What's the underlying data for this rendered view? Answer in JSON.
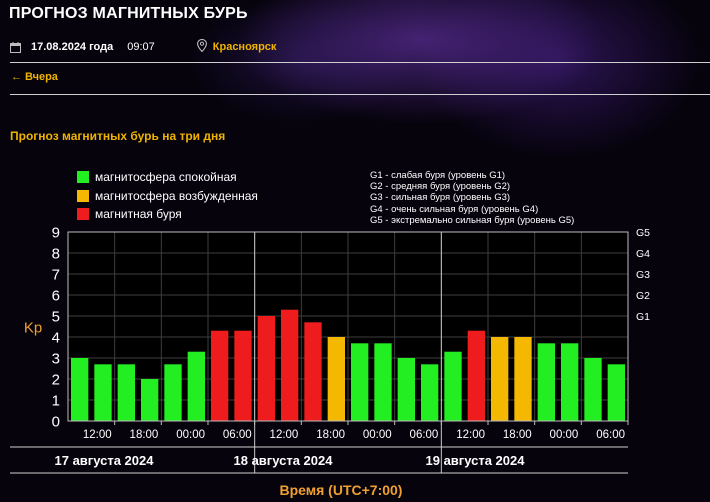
{
  "header": {
    "title": "ПРОГНОЗ МАГНИТНЫХ БУРЬ",
    "date": "17.08.2024 года",
    "time": "09:07",
    "city": "Красноярск",
    "back_link": "← Вчера"
  },
  "chart_data": {
    "type": "bar",
    "title": "Прогноз магнитных бурь на три дня",
    "ylabel": "Kp",
    "xlabel": "Время (UTC+7:00)",
    "ylim": [
      0,
      9
    ],
    "y_ticks": [
      "0",
      "1",
      "2",
      "3",
      "4",
      "5",
      "6",
      "7",
      "8",
      "9"
    ],
    "right_ticks": [
      {
        "kp": 5,
        "label": "G1"
      },
      {
        "kp": 6,
        "label": "G2"
      },
      {
        "kp": 7,
        "label": "G3"
      },
      {
        "kp": 8,
        "label": "G4"
      },
      {
        "kp": 9,
        "label": "G5"
      }
    ],
    "time_labels": [
      "12:00",
      "18:00",
      "00:00",
      "06:00",
      "12:00",
      "18:00",
      "00:00",
      "06:00",
      "12:00",
      "18:00",
      "00:00",
      "06:00"
    ],
    "days": [
      "17 августа 2024",
      "18 августа 2024",
      "19 августа 2024"
    ],
    "values": [
      3.0,
      2.7,
      2.7,
      2.0,
      2.7,
      3.3,
      4.3,
      4.3,
      5.0,
      5.3,
      4.7,
      4.0,
      3.7,
      3.7,
      3.0,
      2.7,
      3.3,
      4.3,
      4.0,
      4.0,
      3.7,
      3.7,
      3.0,
      2.7
    ],
    "levels": [
      "calm",
      "calm",
      "calm",
      "calm",
      "calm",
      "calm",
      "storm",
      "storm",
      "storm",
      "storm",
      "storm",
      "excited",
      "calm",
      "calm",
      "calm",
      "calm",
      "calm",
      "storm",
      "excited",
      "excited",
      "calm",
      "calm",
      "calm",
      "calm"
    ],
    "legend": [
      {
        "key": "calm",
        "label": "магнитосфера спокойная",
        "color": "#22ee22"
      },
      {
        "key": "excited",
        "label": "магнитосфера возбужденная",
        "color": "#f5b800"
      },
      {
        "key": "storm",
        "label": "магнитная буря",
        "color": "#ee1c1c"
      }
    ],
    "storm_levels": [
      "G1 - слабая буря (уровень G1)",
      "G2 - средняя буря (уровень G2)",
      "G3 - сильная буря (уровень G3)",
      "G4 - очень сильная буря (уровень G4)",
      "G5 - экстремально сильная буря (уровень G5)"
    ],
    "grid": true
  }
}
